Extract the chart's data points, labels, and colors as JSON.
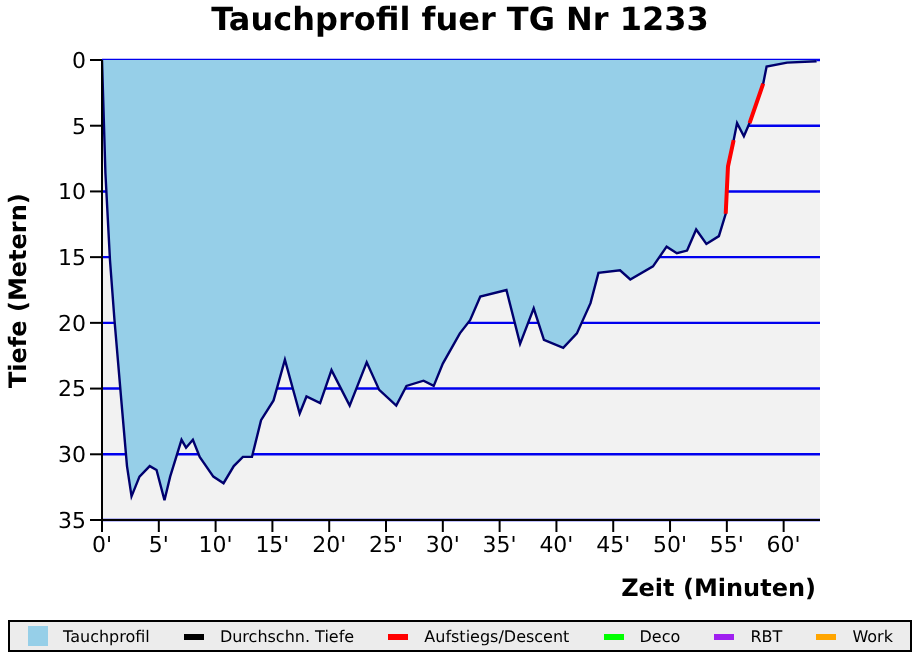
{
  "chart_data": {
    "type": "area",
    "title": "Tauchprofil fuer TG Nr 1233",
    "xlabel": "Zeit (Minuten)",
    "ylabel": "Tiefe (Metern)",
    "x": [
      0,
      0.3,
      0.7,
      1.1,
      1.7,
      2.2,
      2.6,
      3.3,
      4.2,
      4.8,
      5.5,
      6.0,
      7.0,
      7.4,
      8.0,
      8.6,
      9.8,
      10.7,
      11.6,
      12.4,
      13.2,
      14.0,
      15.1,
      16.1,
      17.4,
      18.0,
      19.2,
      20.2,
      21.8,
      23.3,
      24.4,
      25.9,
      26.8,
      28.3,
      29.2,
      30.0,
      31.5,
      32.4,
      33.3,
      35.6,
      36.8,
      38.0,
      38.9,
      40.6,
      41.8,
      43.0,
      43.7,
      45.6,
      46.5,
      48.5,
      49.7,
      50.6,
      51.5,
      52.3,
      53.2,
      54.3,
      54.9,
      55.1,
      55.6,
      55.9,
      56.5,
      57.0,
      58.2,
      58.5,
      60.3,
      62.9
    ],
    "series": [
      {
        "name": "Tauchprofil",
        "color": "#96cfe8",
        "values": [
          0,
          8.6,
          15.2,
          19.8,
          25.9,
          30.9,
          33.2,
          31.7,
          30.9,
          31.2,
          33.5,
          31.7,
          28.9,
          29.5,
          28.9,
          30.2,
          31.7,
          32.2,
          30.9,
          30.2,
          30.2,
          27.4,
          25.9,
          22.8,
          26.9,
          25.6,
          26.1,
          23.6,
          26.3,
          23.0,
          25.1,
          26.3,
          24.8,
          24.4,
          24.8,
          23.1,
          20.8,
          19.8,
          18.0,
          17.5,
          21.6,
          18.9,
          21.3,
          21.9,
          20.8,
          18.5,
          16.2,
          16.0,
          16.7,
          15.7,
          14.2,
          14.7,
          14.5,
          12.9,
          14.0,
          13.4,
          11.7,
          8.1,
          6.1,
          4.8,
          5.8,
          4.8,
          1.8,
          0.5,
          0.2,
          0.1
        ]
      },
      {
        "name": "Durchschn. Tiefe",
        "type": "line",
        "color": "#000000",
        "values": [
          null,
          null,
          null,
          null,
          null,
          null,
          null,
          null,
          null,
          null,
          null,
          null,
          null,
          null,
          null,
          null,
          null,
          null,
          null,
          null,
          null,
          null,
          null,
          null,
          null,
          null,
          null,
          null,
          null,
          null,
          null,
          null,
          null,
          null,
          null,
          null,
          null,
          null,
          null,
          null,
          null,
          null,
          null,
          null,
          null,
          null,
          null,
          null,
          null,
          null,
          null,
          null,
          null,
          null,
          null,
          null,
          null,
          null,
          null,
          null,
          null,
          null,
          null,
          null,
          null,
          null
        ]
      },
      {
        "name": "Aufstiegs/Descent",
        "type": "line",
        "color": "#ff0000",
        "values": [
          null,
          null,
          null,
          null,
          null,
          null,
          null,
          null,
          null,
          null,
          null,
          null,
          null,
          null,
          null,
          null,
          null,
          null,
          null,
          null,
          null,
          null,
          null,
          null,
          null,
          null,
          null,
          null,
          null,
          null,
          null,
          null,
          null,
          null,
          null,
          null,
          null,
          null,
          null,
          null,
          null,
          null,
          null,
          null,
          null,
          null,
          null,
          null,
          null,
          null,
          null,
          null,
          null,
          null,
          null,
          null,
          11.7,
          8.1,
          6.1,
          null,
          null,
          4.8,
          1.8,
          null,
          null,
          null
        ]
      },
      {
        "name": "Deco",
        "type": "line",
        "color": "#00ff00",
        "values": [
          null,
          null,
          null,
          null,
          null,
          null,
          null,
          null,
          null,
          null,
          null,
          null,
          null,
          null,
          null,
          null,
          null,
          null,
          null,
          null,
          null,
          null,
          null,
          null,
          null,
          null,
          null,
          null,
          null,
          null,
          null,
          null,
          null,
          null,
          null,
          null,
          null,
          null,
          null,
          null,
          null,
          null,
          null,
          null,
          null,
          null,
          null,
          null,
          null,
          null,
          null,
          null,
          null,
          null,
          null,
          null,
          null,
          null,
          null,
          null,
          null,
          null,
          null,
          null,
          null,
          null
        ]
      },
      {
        "name": "RBT",
        "type": "line",
        "color": "#a020f0",
        "values": [
          null,
          null,
          null,
          null,
          null,
          null,
          null,
          null,
          null,
          null,
          null,
          null,
          null,
          null,
          null,
          null,
          null,
          null,
          null,
          null,
          null,
          null,
          null,
          null,
          null,
          null,
          null,
          null,
          null,
          null,
          null,
          null,
          null,
          null,
          null,
          null,
          null,
          null,
          null,
          null,
          null,
          null,
          null,
          null,
          null,
          null,
          null,
          null,
          null,
          null,
          null,
          null,
          null,
          null,
          null,
          null,
          null,
          null,
          null,
          null,
          null,
          null,
          null,
          null,
          null,
          null
        ]
      },
      {
        "name": "Work",
        "type": "line",
        "color": "#ffa500",
        "values": [
          null,
          null,
          null,
          null,
          null,
          null,
          null,
          null,
          null,
          null,
          null,
          null,
          null,
          null,
          null,
          null,
          null,
          null,
          null,
          null,
          null,
          null,
          null,
          null,
          null,
          null,
          null,
          null,
          null,
          null,
          null,
          null,
          null,
          null,
          null,
          null,
          null,
          null,
          null,
          null,
          null,
          null,
          null,
          null,
          null,
          null,
          null,
          null,
          null,
          null,
          null,
          null,
          null,
          null,
          null,
          null,
          null,
          null,
          null,
          null,
          null,
          null,
          null,
          null,
          null,
          null
        ]
      }
    ],
    "xlim": [
      0,
      63.2
    ],
    "ylim": [
      35,
      0
    ],
    "xticks": [
      {
        "value": 0,
        "label": "0'"
      },
      {
        "value": 5,
        "label": "5'"
      },
      {
        "value": 10,
        "label": "10'"
      },
      {
        "value": 15,
        "label": "15'"
      },
      {
        "value": 20,
        "label": "20'"
      },
      {
        "value": 25,
        "label": "25'"
      },
      {
        "value": 30,
        "label": "30'"
      },
      {
        "value": 35,
        "label": "35'"
      },
      {
        "value": 40,
        "label": "40'"
      },
      {
        "value": 45,
        "label": "45'"
      },
      {
        "value": 50,
        "label": "50'"
      },
      {
        "value": 55,
        "label": "55'"
      },
      {
        "value": 60,
        "label": "60'"
      }
    ],
    "yticks": [
      0,
      5,
      10,
      15,
      20,
      25,
      30,
      35
    ],
    "grid": "y",
    "legend": "bottom"
  }
}
